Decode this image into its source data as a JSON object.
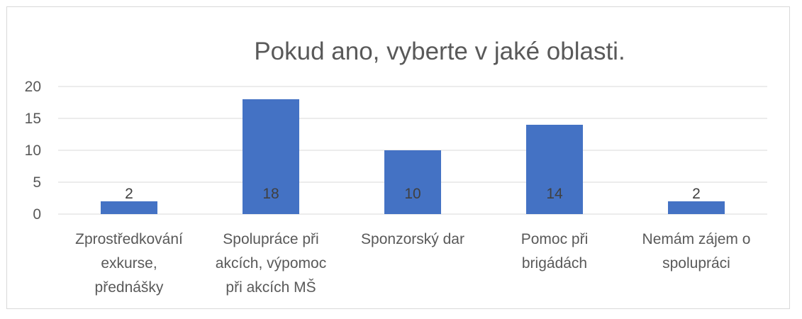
{
  "chart_data": {
    "type": "bar",
    "title": "Pokud ano, vyberte v jaké oblasti.",
    "categories": [
      [
        "Zprostředkování",
        "exkurse,",
        "přednášky"
      ],
      [
        "Spolupráce při",
        "akcích, výpomoc",
        "při akcích MŠ"
      ],
      [
        "Sponzorský dar"
      ],
      [
        "Pomoc při",
        "brigádách"
      ],
      [
        "Nemám zájem o",
        "spolupráci"
      ]
    ],
    "values": [
      2,
      18,
      10,
      14,
      2
    ],
    "data_labels": [
      "2",
      "18",
      "10",
      "14",
      "2"
    ],
    "ylim": [
      0,
      20
    ],
    "yticks": [
      "0",
      "5",
      "10",
      "15",
      "20"
    ],
    "grid": true,
    "legend": "none",
    "bar_color": "#4472c4"
  }
}
